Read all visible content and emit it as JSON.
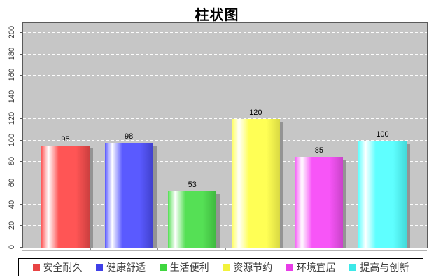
{
  "chart_data": {
    "type": "bar",
    "title": "柱状图",
    "categories": [
      "安全耐久",
      "健康舒适",
      "生活便利",
      "资源节约",
      "环境宜居",
      "提高与创新"
    ],
    "values": [
      95,
      98,
      53,
      120,
      85,
      100
    ],
    "series": [
      {
        "label": "安全耐久",
        "value": 95,
        "color": "#ff5555",
        "color_dark": "#cc3f3f",
        "legend_color": "#e84444"
      },
      {
        "label": "健康舒适",
        "value": 98,
        "color": "#5a5aff",
        "color_dark": "#4040cc",
        "legend_color": "#4040e8"
      },
      {
        "label": "生活便利",
        "value": 53,
        "color": "#55e055",
        "color_dark": "#3fb83f",
        "legend_color": "#3fd63f"
      },
      {
        "label": "资源节约",
        "value": 120,
        "color": "#ffff55",
        "color_dark": "#d9d943",
        "legend_color": "#f2f23c"
      },
      {
        "label": "环境宜居",
        "value": 85,
        "color": "#f755f7",
        "color_dark": "#c943c9",
        "legend_color": "#e83ce8"
      },
      {
        "label": "提高与创新",
        "value": 100,
        "color": "#5fffff",
        "color_dark": "#43d9d9",
        "legend_color": "#3ce8e8"
      }
    ],
    "ylim": [
      0,
      200
    ],
    "ytick_step": 20,
    "ytick_labels": [
      "0",
      "20",
      "40",
      "60",
      "80",
      "100",
      "120",
      "140",
      "160",
      "180",
      "200"
    ],
    "xlabel": "",
    "ylabel": "",
    "grid": "horizontal-dashed-white",
    "plot_background": "#c6c6c6",
    "legend_position": "bottom"
  }
}
